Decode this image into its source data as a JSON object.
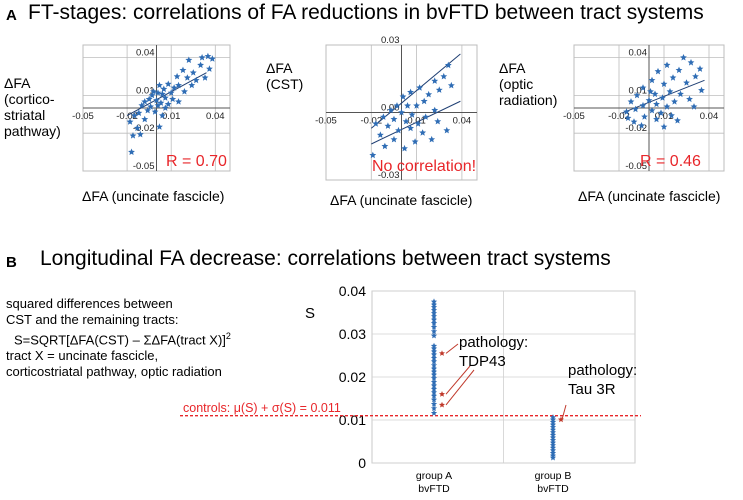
{
  "colors": {
    "marker": "#2f6db5",
    "fit_line": "#1f3f73",
    "red_text": "#e8262a",
    "grid": "#bdbdbd",
    "pathology_marker": "#c0392b"
  },
  "panel_a": {
    "letter": "A",
    "heading": "FT-stages: correlations of FA reductions in bvFTD between tract systems"
  },
  "panel_b": {
    "letter": "B",
    "heading": "Longitudinal FA decrease: correlations between tract systems",
    "description": {
      "line1": "squared differences between",
      "line2": "CST and the remaining tracts:",
      "formula_main": "S=SQRT[ΔFA(CST) – ΣΔFA(tract X)]",
      "formula_exp": "2",
      "line4": "tract X = uncinate fascicle,",
      "line5": "corticostriatal pathway, optic radiation"
    },
    "threshold_label": "controls: μ(S) + σ(S) = 0.011",
    "pathology_a_line1": "pathology:",
    "pathology_a_line2": "TDP43",
    "pathology_b_line1": "pathology:",
    "pathology_b_line2": "Tau 3R"
  },
  "scatter_panels": [
    {
      "ylabel_lines": [
        "ΔFA",
        "(cortico-",
        "striatal",
        "pathway)"
      ],
      "xlabel": "ΔFA (uncinate fascicle)",
      "annotation": "R = 0.70"
    },
    {
      "ylabel_lines": [
        "ΔFA",
        "(CST)"
      ],
      "xlabel": "ΔFA (uncinate fascicle)",
      "annotation": "No correlation!"
    },
    {
      "ylabel_lines": [
        "ΔFA",
        "(optic",
        "radiation)"
      ],
      "xlabel": "ΔFA (uncinate fascicle)",
      "annotation": "R = 0.46"
    }
  ],
  "chart_data": [
    {
      "type": "scatter",
      "title": "",
      "xlabel": "ΔFA (uncinate fascicle)",
      "ylabel": "ΔFA (cortico-striatal pathway)",
      "xlim": [
        -0.05,
        0.05
      ],
      "ylim": [
        -0.05,
        0.05
      ],
      "x_ticks": [
        -0.05,
        -0.02,
        0.01,
        0.04
      ],
      "x_tick_labels": [
        "-0.05",
        "-0.02",
        "0.01",
        "0.04"
      ],
      "y_ticks": [
        0.04,
        0.01,
        -0.02,
        -0.05
      ],
      "y_tick_labels": [
        "0.04",
        "0.01",
        "-0.02",
        "-0.05"
      ],
      "r": 0.7,
      "fits": [
        [
          -0.02,
          -0.006,
          0.034,
          0.028
        ]
      ],
      "points": [
        [
          0.035,
          0.041
        ],
        [
          0.038,
          0.039
        ],
        [
          0.031,
          0.04
        ],
        [
          0.022,
          0.038
        ],
        [
          0.03,
          0.034
        ],
        [
          0.036,
          0.031
        ],
        [
          0.025,
          0.028
        ],
        [
          0.027,
          0.022
        ],
        [
          0.021,
          0.024
        ],
        [
          0.033,
          0.024
        ],
        [
          0.018,
          0.03
        ],
        [
          0.014,
          0.025
        ],
        [
          0.024,
          0.018
        ],
        [
          0.015,
          0.018
        ],
        [
          0.012,
          0.016
        ],
        [
          0.008,
          0.019
        ],
        [
          0.005,
          0.015
        ],
        [
          0.002,
          0.018
        ],
        [
          0.01,
          0.012
        ],
        [
          0.019,
          0.013
        ],
        [
          0.004,
          0.011
        ],
        [
          0.001,
          0.012
        ],
        [
          -0.003,
          0.01
        ],
        [
          -0.002,
          0.013
        ],
        [
          0.006,
          0.008
        ],
        [
          0.011,
          0.007
        ],
        [
          0.015,
          0.005
        ],
        [
          -0.005,
          0.007
        ],
        [
          0.0,
          0.006
        ],
        [
          0.003,
          0.004
        ],
        [
          0.008,
          0.003
        ],
        [
          -0.008,
          0.005
        ],
        [
          -0.004,
          0.001
        ],
        [
          0.001,
          0.002
        ],
        [
          0.006,
          0.0
        ],
        [
          -0.01,
          0.002
        ],
        [
          -0.006,
          -0.002
        ],
        [
          -0.001,
          -0.003
        ],
        [
          -0.012,
          -0.004
        ],
        [
          -0.015,
          -0.006
        ],
        [
          0.004,
          -0.006
        ],
        [
          -0.008,
          -0.009
        ],
        [
          -0.018,
          -0.011
        ],
        [
          -0.013,
          -0.016
        ],
        [
          -0.016,
          -0.022
        ],
        [
          -0.011,
          -0.021
        ],
        [
          -0.017,
          -0.035
        ],
        [
          0.002,
          -0.015
        ]
      ]
    },
    {
      "type": "scatter",
      "title": "",
      "xlabel": "ΔFA (uncinate fascicle)",
      "ylabel": "ΔFA (CST)",
      "xlim": [
        -0.05,
        0.05
      ],
      "ylim": [
        -0.03,
        0.03
      ],
      "x_ticks": [
        -0.05,
        -0.02,
        0.01,
        0.04
      ],
      "x_tick_labels": [
        "-0.05",
        "-0.02",
        "0.01",
        "0.04"
      ],
      "y_ticks": [
        0.03,
        0.0,
        -0.03
      ],
      "y_tick_labels": [
        "0.03",
        "0.00",
        "-0.03"
      ],
      "fits": [
        [
          -0.02,
          -0.007,
          0.039,
          0.026
        ],
        [
          -0.02,
          -0.014,
          0.039,
          0.005
        ]
      ],
      "points": [
        [
          0.031,
          0.021
        ],
        [
          0.028,
          0.016
        ],
        [
          0.022,
          0.014
        ],
        [
          0.033,
          0.012
        ],
        [
          0.025,
          0.01
        ],
        [
          0.012,
          0.011
        ],
        [
          0.018,
          0.008
        ],
        [
          0.006,
          0.009
        ],
        [
          0.001,
          0.007
        ],
        [
          0.015,
          0.005
        ],
        [
          -0.003,
          0.003
        ],
        [
          0.004,
          0.003
        ],
        [
          0.01,
          0.003
        ],
        [
          0.022,
          0.001
        ],
        [
          -0.007,
          0.001
        ],
        [
          0.0,
          0.0
        ],
        [
          0.007,
          -0.001
        ],
        [
          0.016,
          -0.002
        ],
        [
          -0.012,
          -0.002
        ],
        [
          -0.005,
          -0.003
        ],
        [
          0.003,
          -0.004
        ],
        [
          0.011,
          -0.005
        ],
        [
          0.024,
          -0.004
        ],
        [
          -0.017,
          -0.005
        ],
        [
          -0.009,
          -0.006
        ],
        [
          0.006,
          -0.007
        ],
        [
          -0.002,
          -0.008
        ],
        [
          0.014,
          -0.009
        ],
        [
          -0.014,
          -0.01
        ],
        [
          0.03,
          -0.008
        ],
        [
          -0.005,
          -0.012
        ],
        [
          0.009,
          -0.013
        ],
        [
          -0.011,
          -0.015
        ],
        [
          0.002,
          -0.016
        ],
        [
          -0.019,
          -0.019
        ],
        [
          0.02,
          -0.012
        ]
      ]
    },
    {
      "type": "scatter",
      "title": "",
      "xlabel": "ΔFA (uncinate fascicle)",
      "ylabel": "ΔFA (optic radiation)",
      "xlim": [
        -0.05,
        0.05
      ],
      "ylim": [
        -0.05,
        0.05
      ],
      "x_ticks": [
        -0.05,
        -0.02,
        0.01,
        0.04
      ],
      "x_tick_labels": [
        "-0.05",
        "-0.02",
        "0.01",
        "0.04"
      ],
      "y_ticks": [
        0.04,
        0.01,
        -0.02,
        -0.05
      ],
      "y_tick_labels": [
        "0.04",
        "0.01",
        "-0.02",
        "-0.05"
      ],
      "r": 0.46,
      "fits": [
        [
          -0.018,
          -0.004,
          0.037,
          0.022
        ]
      ],
      "points": [
        [
          0.023,
          0.04
        ],
        [
          0.028,
          0.036
        ],
        [
          0.012,
          0.034
        ],
        [
          0.034,
          0.031
        ],
        [
          0.02,
          0.03
        ],
        [
          0.006,
          0.029
        ],
        [
          0.031,
          0.025
        ],
        [
          0.016,
          0.024
        ],
        [
          0.025,
          0.02
        ],
        [
          0.002,
          0.022
        ],
        [
          0.01,
          0.019
        ],
        [
          0.035,
          0.014
        ],
        [
          -0.004,
          0.016
        ],
        [
          0.014,
          0.013
        ],
        [
          0.021,
          0.011
        ],
        [
          0.004,
          0.011
        ],
        [
          -0.008,
          0.01
        ],
        [
          0.009,
          0.008
        ],
        [
          0.027,
          0.007
        ],
        [
          0.0,
          0.006
        ],
        [
          0.017,
          0.005
        ],
        [
          -0.012,
          0.005
        ],
        [
          0.005,
          0.003
        ],
        [
          -0.004,
          0.002
        ],
        [
          0.012,
          0.001
        ],
        [
          0.03,
          0.001
        ],
        [
          -0.009,
          -0.001
        ],
        [
          0.002,
          -0.002
        ],
        [
          0.008,
          -0.004
        ],
        [
          -0.015,
          -0.003
        ],
        [
          0.015,
          -0.006
        ],
        [
          -0.003,
          -0.007
        ],
        [
          0.005,
          -0.009
        ],
        [
          -0.01,
          -0.011
        ],
        [
          0.019,
          -0.01
        ],
        [
          -0.005,
          -0.014
        ],
        [
          0.01,
          -0.015
        ],
        [
          -0.014,
          -0.008
        ],
        [
          0.001,
          0.013
        ]
      ]
    },
    {
      "type": "strip",
      "ylabel": "S",
      "ylim": [
        0,
        0.04
      ],
      "y_ticks": [
        0,
        0.01,
        0.02,
        0.03,
        0.04
      ],
      "y_tick_labels": [
        "0",
        "0.01",
        "0.02",
        "0.03",
        "0.04"
      ],
      "threshold": 0.011,
      "categories": [
        {
          "line1": "group A",
          "line2": "bvFTD"
        },
        {
          "line1": "group B",
          "line2": "bvFTD"
        }
      ],
      "series": [
        {
          "name": "group A bvFTD",
          "values": [
            0.0375,
            0.0368,
            0.0362,
            0.0355,
            0.0348,
            0.0341,
            0.0333,
            0.0325,
            0.0316,
            0.0306,
            0.0296,
            0.0272,
            0.0266,
            0.0259,
            0.0252,
            0.0244,
            0.0236,
            0.0227,
            0.0219,
            0.0212,
            0.0205,
            0.0197,
            0.0188,
            0.018,
            0.0172,
            0.0164,
            0.0156,
            0.0147,
            0.0137,
            0.0127,
            0.0116
          ]
        },
        {
          "name": "group B bvFTD",
          "values": [
            0.0106,
            0.0101,
            0.0095,
            0.0089,
            0.0083,
            0.0077,
            0.0071,
            0.0065,
            0.0059,
            0.0053,
            0.0047,
            0.0041,
            0.0035,
            0.0029,
            0.0023,
            0.0017,
            0.0012
          ]
        }
      ],
      "pathology_markers": [
        {
          "group": 0,
          "value": 0.0255,
          "label": "TDP43"
        },
        {
          "group": 0,
          "value": 0.016,
          "label": "TDP43"
        },
        {
          "group": 0,
          "value": 0.0135,
          "label": "TDP43"
        },
        {
          "group": 1,
          "value": 0.0101,
          "label": "Tau 3R"
        }
      ]
    }
  ]
}
